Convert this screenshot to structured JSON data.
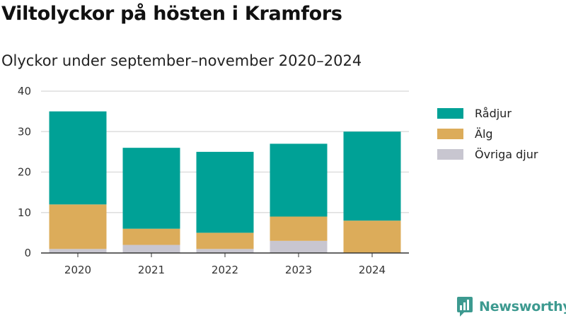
{
  "title": "Viltolyckor på hösten i Kramfors",
  "subtitle": "Olyckor under september–november 2020–2024",
  "brand": {
    "name": "Newsworthy",
    "color": "#3d9a90",
    "icon": "newsworthy-chart-bubble-icon"
  },
  "chart_data": {
    "type": "bar",
    "stacked": true,
    "categories": [
      "2020",
      "2021",
      "2022",
      "2023",
      "2024"
    ],
    "series": [
      {
        "name": "Övriga djur",
        "color": "#c8c6d0",
        "values": [
          1,
          2,
          1,
          3,
          0
        ]
      },
      {
        "name": "Älg",
        "color": "#dcac5a",
        "values": [
          11,
          4,
          4,
          6,
          8
        ]
      },
      {
        "name": "Rådjur",
        "color": "#00a196",
        "values": [
          23,
          20,
          20,
          18,
          22
        ]
      }
    ],
    "legend_order": [
      "Rådjur",
      "Älg",
      "Övriga djur"
    ],
    "ylim": [
      0,
      40
    ],
    "yticks": [
      "0",
      "10",
      "20",
      "30",
      "40"
    ],
    "grid": true,
    "legend_position": "right"
  }
}
